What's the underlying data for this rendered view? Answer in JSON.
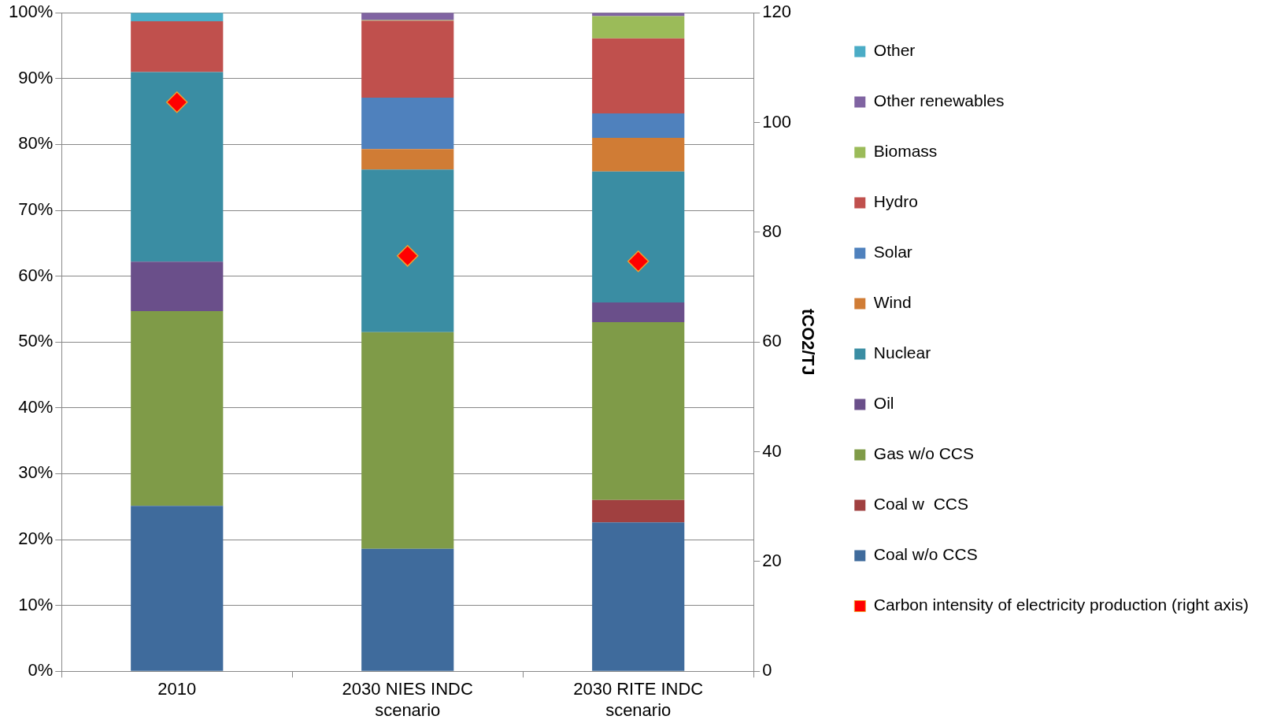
{
  "chart_data": {
    "type": "bar",
    "stacked": true,
    "categories": [
      "2010",
      "2030 NIES INDC scenario",
      "2030 RITE INDC scenario"
    ],
    "y2label": "tCO2/TJ",
    "ylim": [
      0,
      100
    ],
    "yticks": [
      {
        "value": 0,
        "label": "0%"
      },
      {
        "value": 10,
        "label": "10%"
      },
      {
        "value": 20,
        "label": "20%"
      },
      {
        "value": 30,
        "label": "30%"
      },
      {
        "value": 40,
        "label": "40%"
      },
      {
        "value": 50,
        "label": "50%"
      },
      {
        "value": 60,
        "label": "60%"
      },
      {
        "value": 70,
        "label": "70%"
      },
      {
        "value": 80,
        "label": "80%"
      },
      {
        "value": 90,
        "label": "90%"
      },
      {
        "value": 100,
        "label": "100%"
      }
    ],
    "y2lim": [
      0,
      120
    ],
    "y2ticks": [
      0,
      20,
      40,
      60,
      80,
      100,
      120
    ],
    "grid": "y",
    "legend": "right",
    "marker": "diamond",
    "series": [
      {
        "name": "Coal w/o CCS",
        "color": "#3f6b9c",
        "values": [
          25.1,
          18.6,
          22.6
        ]
      },
      {
        "name": "Coal w  CCS",
        "color": "#a04040",
        "values": [
          0,
          0,
          3.4
        ]
      },
      {
        "name": "Gas w/o CCS",
        "color": "#7f9b48",
        "values": [
          29.6,
          32.9,
          27.0
        ]
      },
      {
        "name": "Oil",
        "color": "#6a4f8a",
        "values": [
          7.5,
          0,
          3.0
        ]
      },
      {
        "name": "Nuclear",
        "color": "#3a8da3",
        "values": [
          28.8,
          24.7,
          19.9
        ]
      },
      {
        "name": "Wind",
        "color": "#d07c35",
        "values": [
          0,
          3.1,
          5.1
        ]
      },
      {
        "name": "Solar",
        "color": "#4f81bd",
        "values": [
          0,
          7.8,
          3.7
        ]
      },
      {
        "name": "Hydro",
        "color": "#c0504d",
        "values": [
          7.7,
          11.7,
          11.4
        ]
      },
      {
        "name": "Biomass",
        "color": "#9bbb59",
        "values": [
          0,
          0.1,
          3.4
        ]
      },
      {
        "name": "Other renewables",
        "color": "#8064a2",
        "values": [
          0,
          1.1,
          0.5
        ]
      },
      {
        "name": "Other",
        "color": "#4bacc6",
        "values": [
          1.3,
          0,
          0
        ]
      },
      {
        "name": "Carbon intensity of electricity production (right axis)",
        "type": "scatter",
        "axis": "y2",
        "color": "#ff0000",
        "values": [
          103.7,
          75.7,
          74.7
        ]
      }
    ]
  }
}
